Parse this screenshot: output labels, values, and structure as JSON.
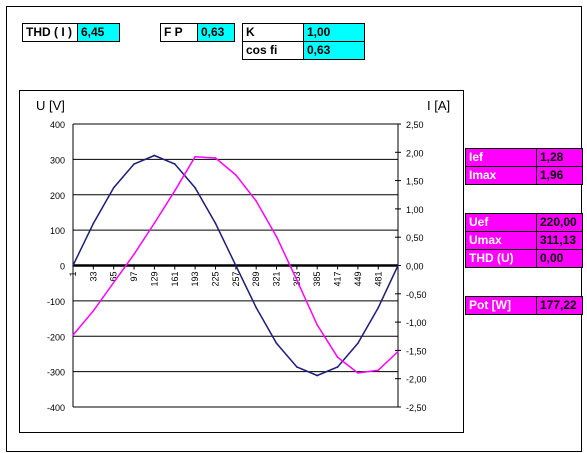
{
  "top_params": {
    "thd_i": {
      "label": "THD ( I )",
      "value": "6,45"
    },
    "fp": {
      "label": "F P",
      "value": "0,63"
    },
    "k": {
      "label": "K",
      "value": "1,00"
    },
    "cos_fi": {
      "label": "cos fi",
      "value": "0,63"
    }
  },
  "side_params": {
    "ief": {
      "label": "Ief",
      "value": "1,28"
    },
    "imax": {
      "label": "Imax",
      "value": "1,96"
    },
    "uef": {
      "label": "Uef",
      "value": "220,00"
    },
    "umax": {
      "label": "Umax",
      "value": "311,13"
    },
    "thd_u": {
      "label": "THD (U)",
      "value": "0,00"
    },
    "pot": {
      "label": "Pot [W]",
      "value": "177,22"
    }
  },
  "colors": {
    "voltage": "#1f1f7a",
    "current": "#ff00ff",
    "cyan": "#00ffff",
    "magenta": "#ff00ff"
  },
  "chart_data": {
    "type": "line",
    "ylabel": "U [V]",
    "y2label": "I [A]",
    "ylim": [
      -400,
      400
    ],
    "y2lim": [
      -2.5,
      2.5
    ],
    "y_ticks": [
      "400",
      "300",
      "200",
      "100",
      "0",
      "-100",
      "-200",
      "-300",
      "-400"
    ],
    "y2_ticks": [
      "2,50",
      "2,00",
      "1,50",
      "1,00",
      "0,50",
      "0,00",
      "-0,50",
      "-1,00",
      "-1,50",
      "-2,00",
      "-2,50"
    ],
    "x_ticks": [
      "1",
      "33",
      "65",
      "97",
      "129",
      "161",
      "193",
      "225",
      "257",
      "289",
      "321",
      "353",
      "385",
      "417",
      "449",
      "481"
    ],
    "xlim": [
      1,
      512
    ],
    "grid": true,
    "series": [
      {
        "axis": "left",
        "x": [
          1,
          33,
          65,
          97,
          129,
          161,
          193,
          225,
          257,
          289,
          321,
          353,
          385,
          417,
          449,
          481,
          512
        ],
        "values": [
          0,
          119,
          220,
          287,
          311,
          287,
          220,
          119,
          0,
          -119,
          -220,
          -287,
          -311,
          -287,
          -220,
          -119,
          0
        ]
      },
      {
        "axis": "right",
        "x": [
          1,
          33,
          65,
          97,
          129,
          161,
          193,
          225,
          257,
          289,
          321,
          353,
          385,
          417,
          449,
          481,
          512
        ],
        "values": [
          -1.23,
          -0.8,
          -0.3,
          0.2,
          0.75,
          1.32,
          1.92,
          1.9,
          1.6,
          1.14,
          0.51,
          -0.26,
          -1.05,
          -1.62,
          -1.9,
          -1.85,
          -1.52
        ]
      }
    ]
  }
}
